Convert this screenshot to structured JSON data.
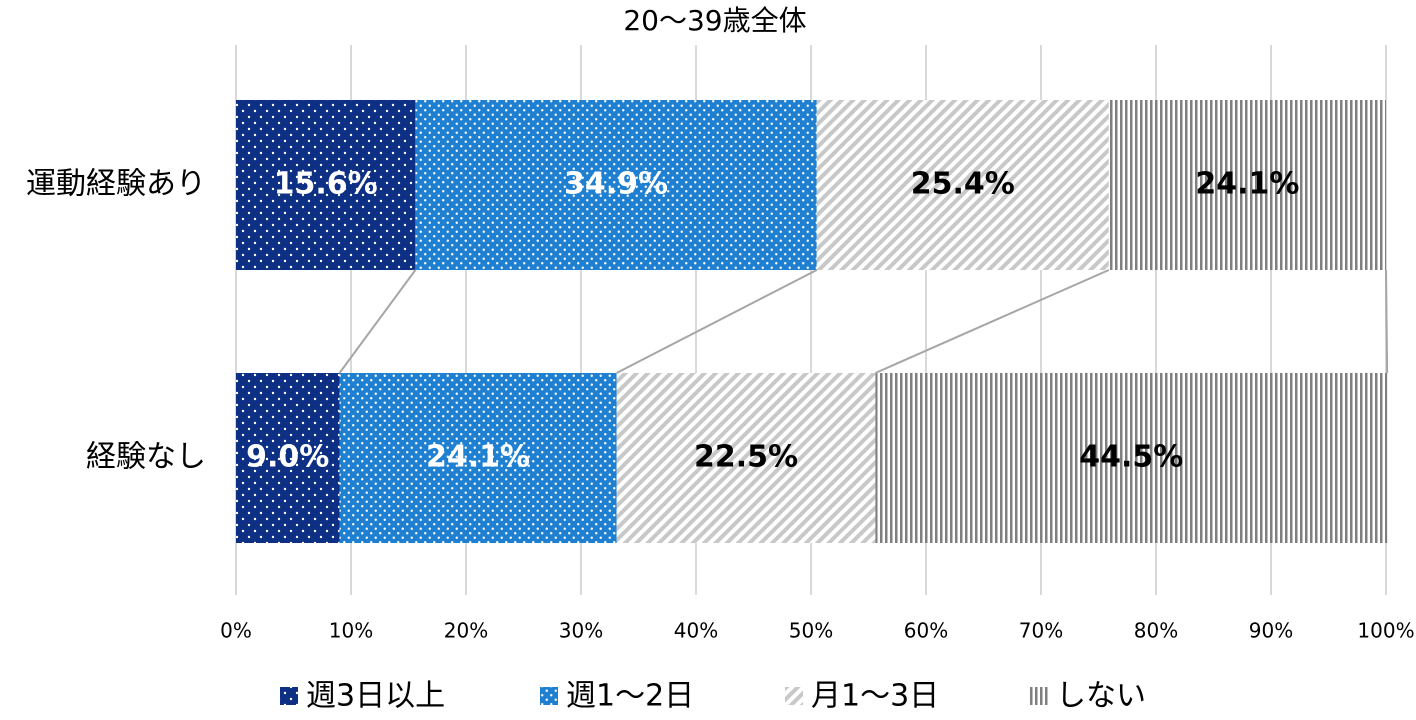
{
  "chart_data": {
    "type": "stacked_bar_horizontal",
    "title": "20～39歳全体",
    "categories": [
      "運動経験あり",
      "経験なし"
    ],
    "series": [
      {
        "name": "週3日以上",
        "color": "#0d2f84",
        "pattern": "dots",
        "values": [
          15.6,
          9.0
        ],
        "value_labels": [
          "15.6%",
          "9.0%"
        ]
      },
      {
        "name": "週1～2日",
        "color": "#1f7fd0",
        "pattern": "dots",
        "values": [
          34.9,
          24.1
        ],
        "value_labels": [
          "34.9%",
          "24.1%"
        ]
      },
      {
        "name": "月1～3日",
        "color": "#c8c8c8",
        "pattern": "hatch",
        "values": [
          25.4,
          22.5
        ],
        "value_labels": [
          "25.4%",
          "22.5%"
        ]
      },
      {
        "name": "しない",
        "color": "#7f7f7f",
        "pattern": "stripes",
        "values": [
          24.1,
          44.5
        ],
        "value_labels": [
          "24.1%",
          "44.5%"
        ]
      }
    ],
    "xlim": [
      0,
      100
    ],
    "xticks": [
      {
        "value": 0,
        "label": "0%"
      },
      {
        "value": 10,
        "label": "10%"
      },
      {
        "value": 20,
        "label": "20%"
      },
      {
        "value": 30,
        "label": "30%"
      },
      {
        "value": 40,
        "label": "40%"
      },
      {
        "value": 50,
        "label": "50%"
      },
      {
        "value": 60,
        "label": "60%"
      },
      {
        "value": 70,
        "label": "70%"
      },
      {
        "value": 80,
        "label": "80%"
      },
      {
        "value": 90,
        "label": "90%"
      },
      {
        "value": 100,
        "label": "100%"
      }
    ],
    "grid": true,
    "legend": "bottom"
  }
}
